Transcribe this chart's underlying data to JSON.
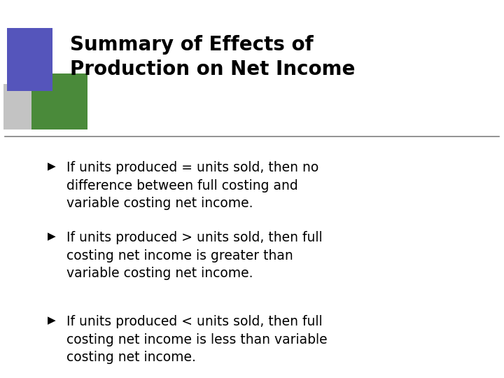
{
  "title_line1": "Summary of Effects of",
  "title_line2": "Production on Net Income",
  "bullets": [
    "If units produced = units sold, then no\ndifference between full costing and\nvariable costing net income.",
    "If units produced > units sold, then full\ncosting net income is greater than\nvariable costing net income.",
    "If units produced < units sold, then full\ncosting net income is less than variable\ncosting net income."
  ],
  "background_color": "#ffffff",
  "title_color": "#000000",
  "bullet_color": "#000000",
  "line_color": "#808080",
  "square_blue_color": "#5555bb",
  "square_green_color": "#4a8a3a",
  "square_gray_color": "#aaaaaa",
  "title_fontsize": 20,
  "bullet_fontsize": 13.5,
  "bullet_char": "Ø"
}
